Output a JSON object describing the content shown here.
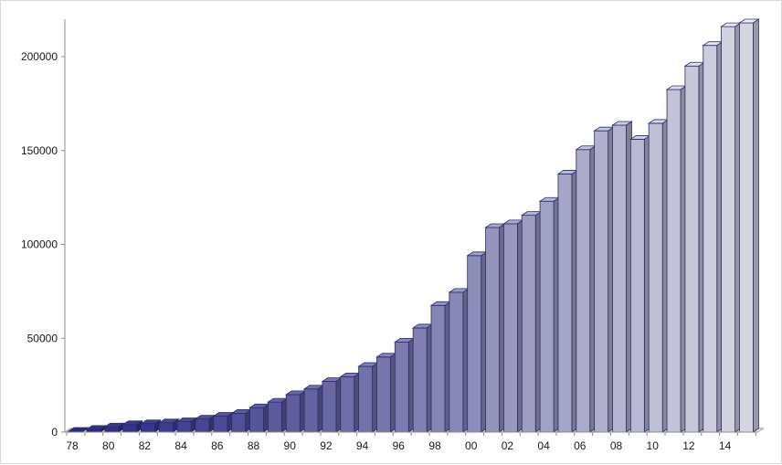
{
  "chart_data": {
    "type": "bar",
    "title": "",
    "xlabel": "",
    "ylabel": "",
    "ylim": [
      0,
      220000
    ],
    "yticks": [
      0,
      50000,
      100000,
      150000,
      200000
    ],
    "ytick_labels": [
      "0",
      "50000",
      "100000",
      "150000",
      "200000"
    ],
    "grid": false,
    "legend": "none",
    "style": "3d-bars-gradient",
    "colors": {
      "start": "#25257f",
      "end": "#d6d6e3",
      "outline": "#2b2b6a"
    },
    "categories": [
      "78",
      "79",
      "80",
      "81",
      "82",
      "83",
      "84",
      "85",
      "86",
      "87",
      "88",
      "89",
      "90",
      "91",
      "92",
      "93",
      "94",
      "95",
      "96",
      "97",
      "98",
      "99",
      "00",
      "01",
      "02",
      "03",
      "04",
      "05",
      "06",
      "07",
      "08",
      "09",
      "10",
      "11",
      "12",
      "13",
      "14",
      "15"
    ],
    "xtick_labels": [
      "78",
      "80",
      "82",
      "84",
      "86",
      "88",
      "90",
      "92",
      "94",
      "96",
      "98",
      "00",
      "02",
      "04",
      "06",
      "08",
      "10",
      "12",
      "14"
    ],
    "values": [
      500,
      1500,
      2800,
      4000,
      4500,
      5000,
      5600,
      7000,
      8500,
      10000,
      13000,
      16000,
      20000,
      23000,
      27000,
      29500,
      35000,
      40000,
      48000,
      55500,
      67500,
      74500,
      94000,
      109000,
      111000,
      115500,
      123000,
      137500,
      150500,
      160500,
      163500,
      156000,
      164500,
      182500,
      195000,
      206000,
      216000,
      218000
    ]
  }
}
